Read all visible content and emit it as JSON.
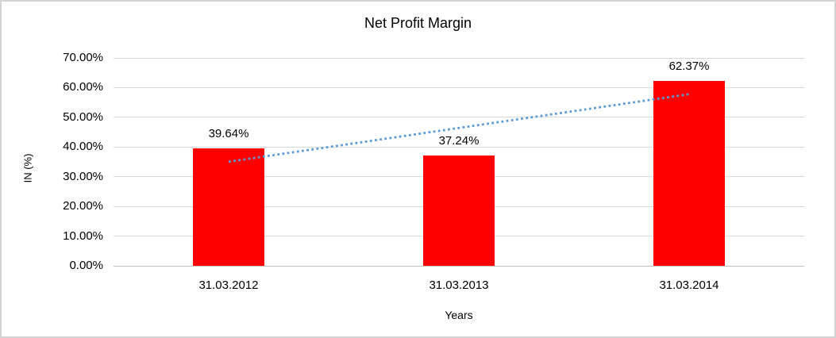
{
  "chart_data": {
    "type": "bar",
    "title": "Net Profit Margin",
    "xlabel": "Years",
    "ylabel": "IN (%)",
    "categories": [
      "31.03.2012",
      "31.03.2013",
      "31.03.2014"
    ],
    "values": [
      39.64,
      37.24,
      62.37
    ],
    "value_labels": [
      "39.64%",
      "37.24%",
      "62.37%"
    ],
    "ylim": [
      0,
      70
    ],
    "ytick_step": 10,
    "ytick_labels": [
      "0.00%",
      "10.00%",
      "20.00%",
      "30.00%",
      "40.00%",
      "50.00%",
      "60.00%",
      "70.00%"
    ],
    "grid": true,
    "legend": false,
    "trendline": {
      "type": "linear",
      "style": "dotted"
    },
    "colors": {
      "bar": "#ff0000",
      "trendline": "#5b9bd5",
      "gridline": "#d9d9d9",
      "axis_line": "#bfbfbf",
      "frame_border": "#d3d3d3",
      "text": "#000000",
      "background": "#ffffff"
    }
  }
}
